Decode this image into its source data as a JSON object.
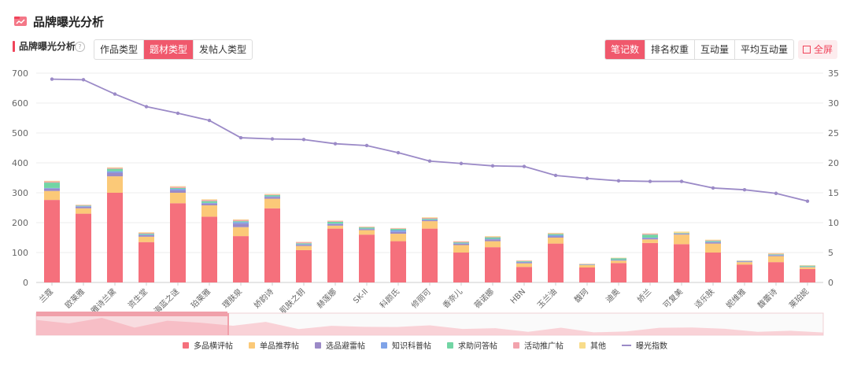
{
  "header": {
    "title": "品牌曝光分析"
  },
  "section": {
    "title": "品牌曝光分析",
    "help": "?"
  },
  "tabs_left": [
    {
      "label": "作品类型",
      "active": false
    },
    {
      "label": "题材类型",
      "active": true
    },
    {
      "label": "发帖人类型",
      "active": false
    }
  ],
  "tabs_right": [
    {
      "label": "笔记数",
      "active": true
    },
    {
      "label": "排名权重",
      "active": false
    },
    {
      "label": "互动量",
      "active": false
    },
    {
      "label": "平均互动量",
      "active": false
    }
  ],
  "fullscreen_label": "全屏",
  "colors": {
    "accent": "#f0586c",
    "series": [
      "#f5707c",
      "#fbc978",
      "#9b8ac7",
      "#7fa3e8",
      "#72d5a4",
      "#f2a3ad",
      "#f8dc8a"
    ],
    "line": "#9b8ac7"
  },
  "chart_data": {
    "type": "bar",
    "stacked": true,
    "categories": [
      "兰蔻",
      "欧莱雅",
      "雅诗兰黛",
      "资生堂",
      "海蓝之谜",
      "珀莱雅",
      "理肤泉",
      "娇韵诗",
      "肌肤之钥",
      "赫莲娜",
      "SK-II",
      "科颜氏",
      "修丽可",
      "香奈儿",
      "薇诺娜",
      "HBN",
      "玉兰油",
      "馥珂",
      "迪奥",
      "娇兰",
      "可复美",
      "适乐肤",
      "妮维雅",
      "馥蕾诗",
      "莱珀妮"
    ],
    "series": [
      {
        "name": "多品横评帖",
        "values": [
          276,
          230,
          300,
          135,
          265,
          220,
          155,
          248,
          108,
          180,
          160,
          138,
          180,
          100,
          118,
          52,
          130,
          50,
          65,
          132,
          128,
          100,
          60,
          68,
          45
        ]
      },
      {
        "name": "单品推荐帖",
        "values": [
          30,
          18,
          55,
          18,
          35,
          38,
          30,
          32,
          14,
          10,
          15,
          25,
          25,
          25,
          20,
          12,
          20,
          8,
          8,
          12,
          32,
          30,
          8,
          20,
          6
        ]
      },
      {
        "name": "选品避雷帖",
        "values": [
          8,
          5,
          12,
          5,
          8,
          6,
          12,
          6,
          4,
          5,
          3,
          6,
          3,
          4,
          6,
          3,
          4,
          1,
          2,
          4,
          2,
          4,
          2,
          2,
          1
        ]
      },
      {
        "name": "知识科普帖",
        "values": [
          2,
          2,
          5,
          2,
          5,
          2,
          5,
          2,
          2,
          2,
          2,
          6,
          2,
          2,
          2,
          2,
          4,
          1,
          1,
          2,
          1,
          2,
          1,
          2,
          1
        ]
      },
      {
        "name": "求助问答帖",
        "values": [
          18,
          2,
          8,
          3,
          3,
          6,
          3,
          4,
          3,
          6,
          4,
          4,
          3,
          3,
          5,
          2,
          4,
          1,
          5,
          10,
          2,
          3,
          1,
          2,
          3
        ]
      },
      {
        "name": "活动推广帖",
        "values": [
          4,
          2,
          3,
          3,
          4,
          4,
          4,
          2,
          4,
          3,
          2,
          2,
          3,
          3,
          2,
          2,
          2,
          1,
          1,
          3,
          1,
          2,
          1,
          2,
          1
        ]
      },
      {
        "name": "其他",
        "values": [
          2,
          1,
          2,
          2,
          2,
          2,
          2,
          2,
          1,
          1,
          1,
          1,
          2,
          1,
          2,
          1,
          2,
          1,
          1,
          1,
          4,
          2,
          1,
          2,
          1
        ]
      }
    ],
    "line": {
      "name": "曝光指数",
      "values": [
        34.0,
        33.9,
        31.5,
        29.4,
        28.3,
        27.1,
        24.2,
        24.0,
        23.9,
        23.2,
        22.9,
        21.7,
        20.3,
        19.9,
        19.5,
        19.4,
        17.9,
        17.4,
        17.0,
        16.9,
        16.9,
        15.8,
        15.5,
        14.9,
        13.6
      ]
    },
    "ylim": [
      0,
      700
    ],
    "yticks": [
      0,
      100,
      200,
      300,
      400,
      500,
      600,
      700
    ],
    "y2lim": [
      0,
      35
    ],
    "y2ticks": [
      0,
      5,
      10,
      15,
      20,
      25,
      30,
      35
    ],
    "legend_position": "bottom"
  }
}
